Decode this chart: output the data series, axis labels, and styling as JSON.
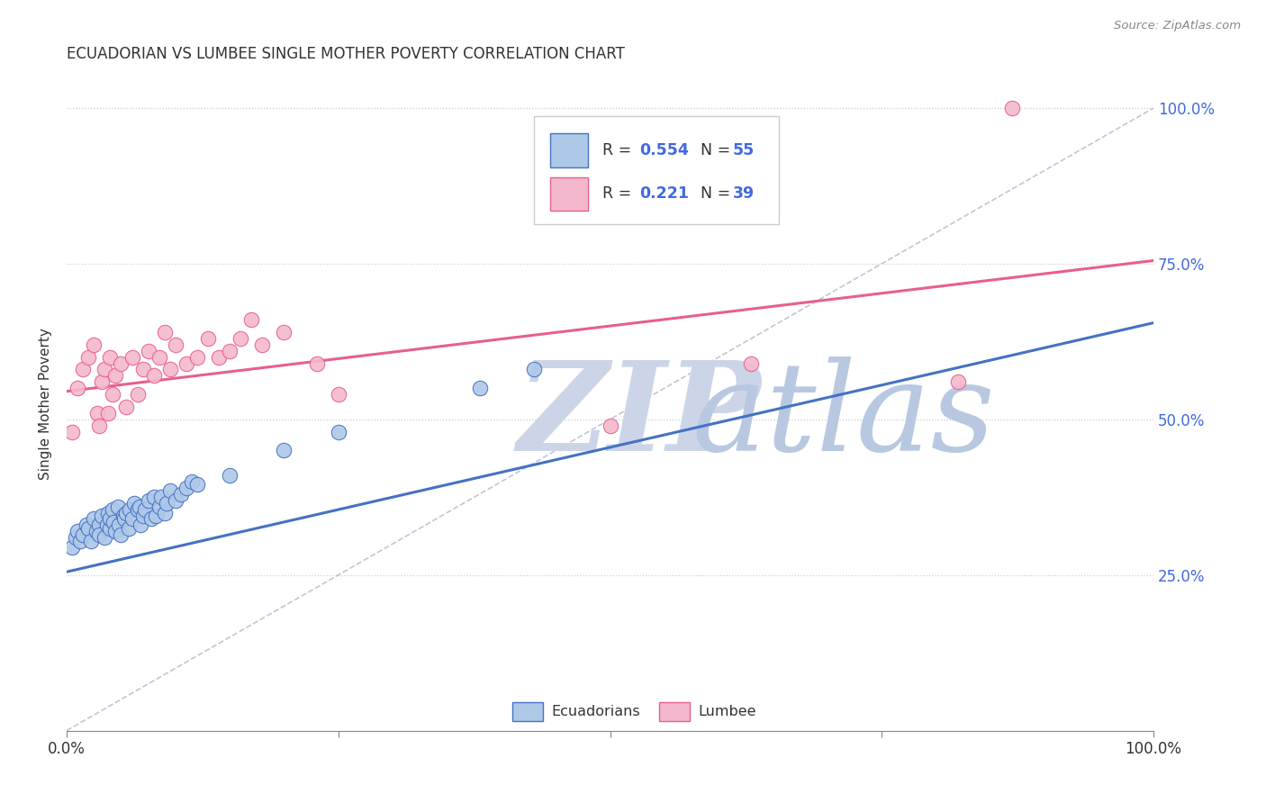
{
  "title": "ECUADORIAN VS LUMBEE SINGLE MOTHER POVERTY CORRELATION CHART",
  "source": "Source: ZipAtlas.com",
  "ylabel": "Single Mother Poverty",
  "ytick_labels": [
    "25.0%",
    "50.0%",
    "75.0%",
    "100.0%"
  ],
  "legend_blue_r": "0.554",
  "legend_blue_n": "55",
  "legend_pink_r": "0.221",
  "legend_pink_n": "39",
  "blue_face": "#aec8e8",
  "blue_edge": "#4472c4",
  "pink_face": "#f4b8ce",
  "pink_edge": "#e8608a",
  "legend_val_color": "#4169E1",
  "watermark_zip_color": "#ccd5e8",
  "watermark_atlas_color": "#b8c8e0",
  "right_label_color": "#4169E1",
  "blue_trend_y_start": 0.255,
  "blue_trend_y_end": 0.655,
  "pink_trend_y_start": 0.545,
  "pink_trend_y_end": 0.755,
  "ecuadorians_scatter_x": [
    0.005,
    0.008,
    0.01,
    0.012,
    0.015,
    0.018,
    0.02,
    0.022,
    0.025,
    0.027,
    0.03,
    0.03,
    0.032,
    0.035,
    0.037,
    0.038,
    0.04,
    0.04,
    0.042,
    0.043,
    0.045,
    0.047,
    0.048,
    0.05,
    0.052,
    0.053,
    0.055,
    0.057,
    0.058,
    0.06,
    0.062,
    0.065,
    0.067,
    0.068,
    0.07,
    0.072,
    0.075,
    0.078,
    0.08,
    0.082,
    0.085,
    0.087,
    0.09,
    0.092,
    0.095,
    0.1,
    0.105,
    0.11,
    0.115,
    0.12,
    0.15,
    0.2,
    0.25,
    0.38,
    0.43
  ],
  "ecuadorians_scatter_y": [
    0.295,
    0.31,
    0.32,
    0.305,
    0.315,
    0.33,
    0.325,
    0.305,
    0.34,
    0.32,
    0.33,
    0.315,
    0.345,
    0.31,
    0.33,
    0.35,
    0.325,
    0.34,
    0.355,
    0.335,
    0.32,
    0.36,
    0.33,
    0.315,
    0.345,
    0.34,
    0.35,
    0.325,
    0.355,
    0.34,
    0.365,
    0.355,
    0.36,
    0.33,
    0.345,
    0.355,
    0.37,
    0.34,
    0.375,
    0.345,
    0.36,
    0.375,
    0.35,
    0.365,
    0.385,
    0.37,
    0.38,
    0.39,
    0.4,
    0.395,
    0.41,
    0.45,
    0.48,
    0.55,
    0.58
  ],
  "lumbee_scatter_x": [
    0.005,
    0.01,
    0.015,
    0.02,
    0.025,
    0.028,
    0.03,
    0.032,
    0.035,
    0.038,
    0.04,
    0.042,
    0.045,
    0.05,
    0.055,
    0.06,
    0.065,
    0.07,
    0.075,
    0.08,
    0.085,
    0.09,
    0.095,
    0.1,
    0.11,
    0.12,
    0.13,
    0.14,
    0.15,
    0.16,
    0.17,
    0.18,
    0.2,
    0.23,
    0.25,
    0.5,
    0.63,
    0.82,
    0.87
  ],
  "lumbee_scatter_y": [
    0.48,
    0.55,
    0.58,
    0.6,
    0.62,
    0.51,
    0.49,
    0.56,
    0.58,
    0.51,
    0.6,
    0.54,
    0.57,
    0.59,
    0.52,
    0.6,
    0.54,
    0.58,
    0.61,
    0.57,
    0.6,
    0.64,
    0.58,
    0.62,
    0.59,
    0.6,
    0.63,
    0.6,
    0.61,
    0.63,
    0.66,
    0.62,
    0.64,
    0.59,
    0.54,
    0.49,
    0.59,
    0.56,
    1.0
  ],
  "xlim": [
    0.0,
    1.0
  ],
  "ylim": [
    0.0,
    1.05
  ],
  "bg_color": "#ffffff",
  "grid_color": "#cccccc"
}
